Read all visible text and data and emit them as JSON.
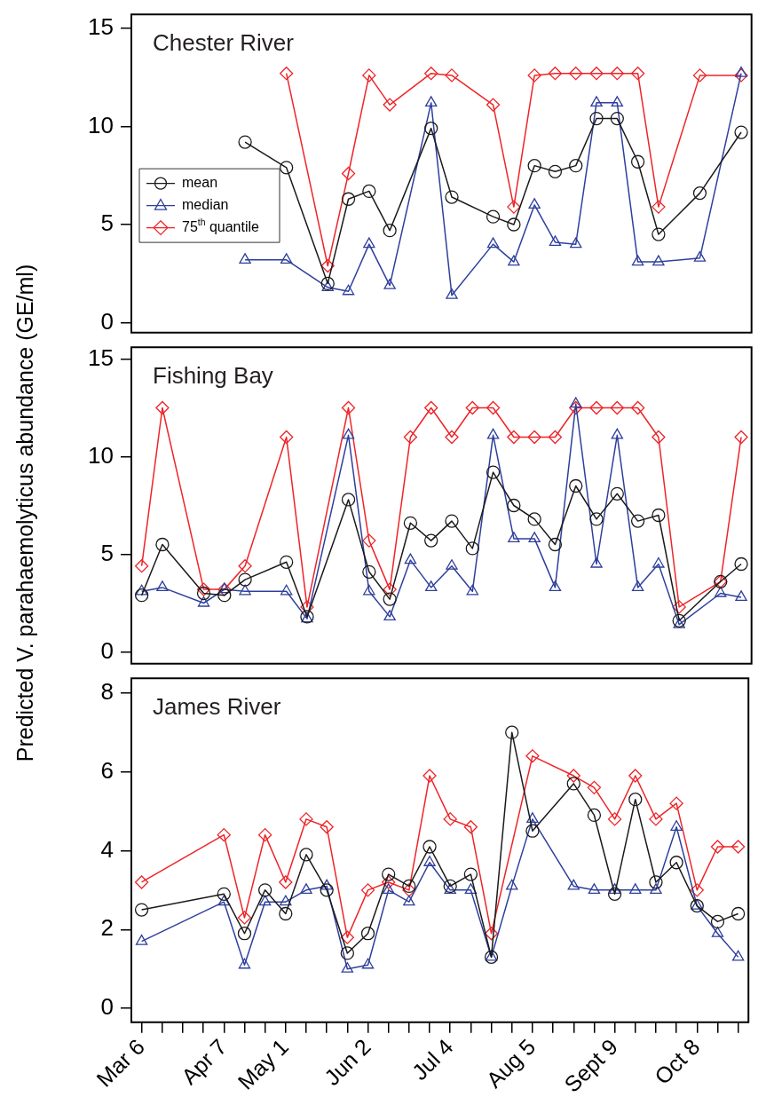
{
  "chart_data": [
    {
      "type": "line",
      "title": "Chester River",
      "legend": "left",
      "tick_labels": "y",
      "grid": false,
      "ylim": [
        -0.5,
        15.7
      ],
      "yticks": [
        0,
        5,
        10,
        15
      ],
      "series": [
        {
          "name": "mean",
          "color": "#1a1a1a",
          "marker": "circle",
          "values": [
            null,
            null,
            null,
            null,
            null,
            9.2,
            null,
            7.9,
            null,
            2.0,
            6.3,
            6.7,
            4.7,
            null,
            9.9,
            6.4,
            null,
            5.4,
            5.0,
            8.0,
            7.7,
            8.0,
            10.4,
            10.4,
            8.2,
            4.5,
            null,
            6.6,
            null,
            9.7
          ]
        },
        {
          "name": "median",
          "color": "#2e3f9c",
          "marker": "triangle",
          "values": [
            null,
            null,
            null,
            null,
            null,
            3.2,
            null,
            3.2,
            null,
            1.8,
            1.6,
            4.0,
            1.9,
            null,
            11.2,
            1.4,
            null,
            4.0,
            3.1,
            6.0,
            4.1,
            4.0,
            11.2,
            11.2,
            3.1,
            3.1,
            null,
            3.3,
            null,
            12.7
          ]
        },
        {
          "name": "75$^{th}$ quantile",
          "color": "#ee2428",
          "marker": "diamond",
          "values": [
            null,
            null,
            null,
            null,
            null,
            null,
            null,
            12.7,
            null,
            2.9,
            7.6,
            12.6,
            11.1,
            null,
            12.7,
            12.6,
            null,
            11.1,
            5.9,
            12.6,
            12.7,
            12.7,
            12.7,
            12.7,
            12.7,
            5.9,
            null,
            12.6,
            null,
            12.6
          ]
        }
      ]
    },
    {
      "type": "line",
      "title": "Fishing Bay",
      "ylabel": "Predicted V. parahaemolyticus abundance (GE/ml)",
      "tick_labels": "y",
      "grid": false,
      "ylim": [
        -0.6,
        15.6
      ],
      "yticks": [
        0,
        5,
        10,
        15
      ],
      "series": [
        {
          "color": "#1a1a1a",
          "marker": "circle",
          "values": [
            2.9,
            5.5,
            null,
            3.0,
            2.9,
            3.7,
            null,
            4.6,
            1.8,
            null,
            7.8,
            4.1,
            2.7,
            6.6,
            5.7,
            6.7,
            5.3,
            9.2,
            7.5,
            6.8,
            5.5,
            8.5,
            6.8,
            8.1,
            6.7,
            7.0,
            1.6,
            null,
            3.6,
            4.5
          ]
        },
        {
          "color": "#2e3f9c",
          "marker": "triangle",
          "values": [
            3.1,
            3.3,
            null,
            2.5,
            3.2,
            3.1,
            null,
            3.1,
            1.7,
            null,
            11.1,
            3.1,
            1.8,
            4.7,
            3.3,
            4.4,
            3.1,
            11.1,
            5.8,
            5.8,
            3.3,
            12.7,
            4.5,
            11.1,
            3.3,
            4.5,
            1.4,
            null,
            3.0,
            2.8
          ]
        },
        {
          "color": "#ee2428",
          "marker": "diamond",
          "values": [
            4.4,
            12.5,
            null,
            3.2,
            3.2,
            4.4,
            null,
            11.0,
            2.3,
            null,
            12.5,
            5.7,
            3.2,
            11.0,
            12.5,
            11.0,
            12.5,
            12.5,
            11.0,
            11.0,
            11.0,
            12.5,
            12.5,
            12.5,
            12.5,
            11.0,
            2.3,
            null,
            3.6,
            11.0
          ]
        }
      ]
    },
    {
      "type": "line",
      "title": "James River",
      "grid": false,
      "categories": [
        "Mar 6",
        null,
        null,
        null,
        "Apr 7",
        null,
        null,
        "May 1",
        null,
        null,
        null,
        "Jun 2",
        null,
        null,
        null,
        "Jul 4",
        null,
        null,
        null,
        "Aug 5",
        null,
        null,
        null,
        "Sept 9",
        null,
        null,
        null,
        "Oct 8",
        null,
        null
      ],
      "ylim": [
        -0.35,
        8.37
      ],
      "yticks": [
        0,
        2,
        4,
        6,
        8
      ],
      "series": [
        {
          "color": "#1a1a1a",
          "marker": "circle",
          "values": [
            2.5,
            null,
            null,
            null,
            2.9,
            1.9,
            3.0,
            2.4,
            3.9,
            3.0,
            1.4,
            1.9,
            3.4,
            3.1,
            4.1,
            3.1,
            3.4,
            1.3,
            7.0,
            4.5,
            null,
            5.7,
            4.9,
            2.9,
            5.3,
            3.2,
            3.7,
            2.6,
            2.2,
            2.4
          ]
        },
        {
          "color": "#2e3f9c",
          "marker": "triangle",
          "values": [
            1.7,
            null,
            null,
            null,
            2.7,
            1.1,
            2.7,
            2.7,
            3.0,
            3.1,
            1.0,
            1.1,
            3.0,
            2.7,
            3.7,
            3.0,
            3.0,
            1.3,
            3.1,
            4.8,
            null,
            3.1,
            3.0,
            3.0,
            3.0,
            3.0,
            4.6,
            2.6,
            1.9,
            1.3
          ]
        },
        {
          "color": "#ee2428",
          "marker": "diamond",
          "values": [
            3.2,
            null,
            null,
            null,
            4.4,
            2.3,
            4.4,
            3.2,
            4.8,
            4.6,
            1.8,
            3.0,
            3.2,
            3.0,
            5.9,
            4.8,
            4.6,
            1.9,
            null,
            6.4,
            null,
            5.9,
            5.6,
            4.8,
            5.9,
            4.8,
            5.2,
            3.0,
            4.1,
            4.1
          ]
        }
      ]
    }
  ]
}
